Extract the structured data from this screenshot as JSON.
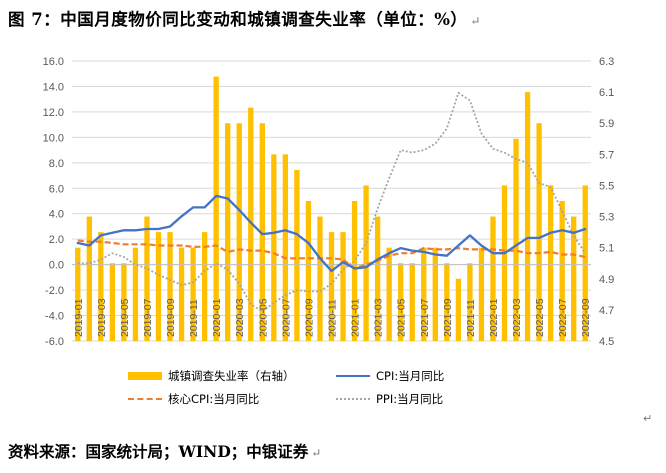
{
  "title": "图 7：中国月度物价同比变动和城镇调查失业率（单位：%）",
  "source": "资料来源：国家统计局；WIND；中银证券",
  "para_mark": "↵",
  "colors": {
    "unemployment": "#FFC000",
    "cpi": "#4472C4",
    "core_cpi": "#ED7D31",
    "ppi": "#A5A5A5",
    "grid": "#D9D9D9",
    "axis_text": "#595959"
  },
  "chart_data": {
    "type": "bar+line",
    "title": "",
    "x": [
      "2019-01",
      "2019-02",
      "2019-03",
      "2019-04",
      "2019-05",
      "2019-06",
      "2019-07",
      "2019-08",
      "2019-09",
      "2019-10",
      "2019-11",
      "2019-12",
      "2020-01",
      "2020-02",
      "2020-03",
      "2020-04",
      "2020-05",
      "2020-06",
      "2020-07",
      "2020-08",
      "2020-09",
      "2020-10",
      "2020-11",
      "2020-12",
      "2021-01",
      "2021-02",
      "2021-03",
      "2021-04",
      "2021-05",
      "2021-06",
      "2021-07",
      "2021-08",
      "2021-09",
      "2021-10",
      "2021-11",
      "2021-12",
      "2022-01",
      "2022-02",
      "2022-03",
      "2022-04",
      "2022-05",
      "2022-06",
      "2022-07",
      "2022-08",
      "2022-09"
    ],
    "x_tick_labels": [
      "2019-01",
      "2019-03",
      "2019-05",
      "2019-07",
      "2019-09",
      "2019-11",
      "2020-01",
      "2020-03",
      "2020-05",
      "2020-07",
      "2020-09",
      "2020-11",
      "2021-01",
      "2021-03",
      "2021-05",
      "2021-07",
      "2021-09",
      "2021-11",
      "2022-01",
      "2022-03",
      "2022-05",
      "2022-07",
      "2022-09"
    ],
    "y_left": {
      "min": -6,
      "max": 16,
      "step": 2,
      "tick_labels": [
        "16.0",
        "14.0",
        "12.0",
        "10.0",
        "8.0",
        "6.0",
        "4.0",
        "2.0",
        "0.0",
        "-2.0",
        "-4.0",
        "-6.0"
      ]
    },
    "y_right": {
      "min": 4.5,
      "max": 6.3,
      "step": 0.2,
      "tick_labels": [
        "6.3",
        "6.1",
        "5.9",
        "5.7",
        "5.5",
        "5.3",
        "5.1",
        "4.9",
        "4.7",
        "4.5"
      ]
    },
    "grid": true,
    "legend_position": "bottom",
    "series": [
      {
        "name": "城镇调查失业率（右轴）",
        "type": "bar",
        "axis": "right",
        "values": [
          5.1,
          5.3,
          5.2,
          5.0,
          5.0,
          5.1,
          5.3,
          5.2,
          5.2,
          5.1,
          5.1,
          5.2,
          6.2,
          5.9,
          5.9,
          6.0,
          5.9,
          5.7,
          5.7,
          5.6,
          5.4,
          5.3,
          5.2,
          5.2,
          5.4,
          5.5,
          5.3,
          5.1,
          5.0,
          5.0,
          5.1,
          5.1,
          5.0,
          4.9,
          5.0,
          5.1,
          5.3,
          5.5,
          5.8,
          6.1,
          5.9,
          5.5,
          5.4,
          5.3,
          5.5
        ]
      },
      {
        "name": "CPI:当月同比",
        "type": "line",
        "axis": "left",
        "values": [
          1.7,
          1.5,
          2.3,
          2.5,
          2.7,
          2.7,
          2.8,
          2.8,
          3.0,
          3.8,
          4.5,
          4.5,
          5.4,
          5.2,
          4.3,
          3.3,
          2.4,
          2.5,
          2.7,
          2.4,
          1.7,
          0.5,
          -0.5,
          0.2,
          -0.3,
          -0.2,
          0.4,
          0.9,
          1.3,
          1.1,
          1.0,
          0.8,
          0.7,
          1.5,
          2.3,
          1.5,
          0.9,
          0.9,
          1.5,
          2.1,
          2.1,
          2.5,
          2.7,
          2.5,
          2.8
        ]
      },
      {
        "name": "核心CPI:当月同比",
        "type": "line",
        "dashed": true,
        "axis": "left",
        "values": [
          1.9,
          1.8,
          1.8,
          1.7,
          1.6,
          1.6,
          1.6,
          1.5,
          1.5,
          1.5,
          1.4,
          1.4,
          1.5,
          1.0,
          1.2,
          1.1,
          1.1,
          0.9,
          0.5,
          0.5,
          0.5,
          0.5,
          0.5,
          0.4,
          -0.3,
          0.0,
          0.3,
          0.7,
          0.9,
          0.9,
          1.3,
          1.2,
          1.2,
          1.3,
          1.2,
          1.2,
          1.2,
          1.1,
          1.1,
          0.9,
          0.9,
          1.0,
          0.8,
          0.8,
          0.6
        ]
      },
      {
        "name": "PPI:当月同比",
        "type": "line",
        "dotted": true,
        "axis": "left",
        "values": [
          0.1,
          0.1,
          0.4,
          0.9,
          0.6,
          0.0,
          -0.3,
          -0.8,
          -1.2,
          -1.6,
          -1.4,
          -0.5,
          0.1,
          -0.4,
          -1.5,
          -3.1,
          -3.7,
          -3.0,
          -2.4,
          -2.0,
          -2.1,
          -2.1,
          -1.5,
          -0.4,
          0.3,
          1.7,
          4.4,
          6.8,
          9.0,
          8.8,
          9.0,
          9.5,
          10.7,
          13.5,
          12.9,
          10.3,
          9.1,
          8.8,
          8.3,
          8.0,
          6.4,
          6.1,
          4.2,
          2.3,
          0.9
        ]
      }
    ]
  },
  "legend": {
    "unemployment": "城镇调查失业率（右轴）",
    "cpi": "CPI:当月同比",
    "core_cpi": "核心CPI:当月同比",
    "ppi": "PPI:当月同比"
  }
}
